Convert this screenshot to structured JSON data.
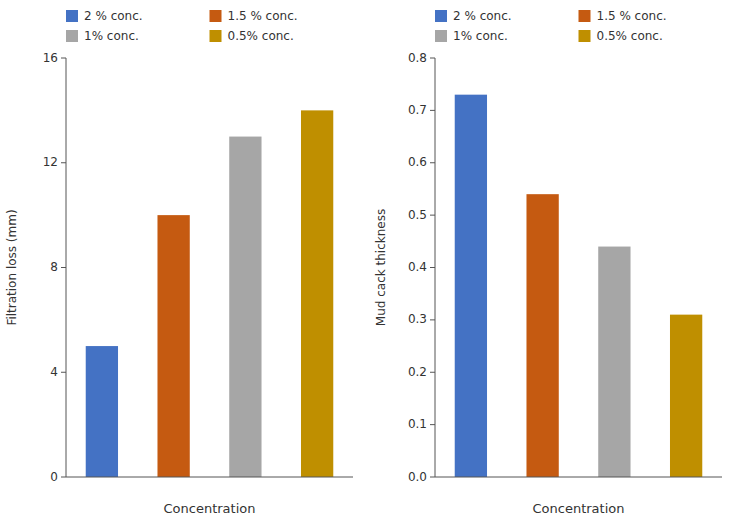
{
  "chart_data": [
    {
      "type": "bar",
      "xlabel": "Concentration",
      "ylabel": "Filtration loss (mm)",
      "categories": [
        null,
        null,
        null,
        null
      ],
      "series": [
        {
          "name": "2 % conc.",
          "color": "#4472C4",
          "values": [
            5.0,
            null,
            null,
            null
          ]
        },
        {
          "name": "1.5 % conc.",
          "color": "#C55A11",
          "values": [
            null,
            10.0,
            null,
            null
          ]
        },
        {
          "name": "1% conc.",
          "color": "#A6A6A6",
          "values": [
            null,
            null,
            13.0,
            null
          ]
        },
        {
          "name": "0.5% conc.",
          "color": "#BF8F00",
          "values": [
            null,
            null,
            null,
            14.0
          ]
        }
      ],
      "ylim": [
        0,
        16
      ],
      "yticks": [
        0,
        4,
        8,
        12,
        16
      ],
      "grid": false,
      "legend": "upper left",
      "tick_labels": "y"
    },
    {
      "type": "bar",
      "xlabel": "Concentration",
      "ylabel": "Mud cack thickness",
      "categories": [
        null,
        null,
        null,
        null
      ],
      "series": [
        {
          "name": "2 % conc.",
          "color": "#4472C4",
          "values": [
            0.73,
            null,
            null,
            null
          ]
        },
        {
          "name": "1.5 % conc.",
          "color": "#C55A11",
          "values": [
            null,
            0.54,
            null,
            null
          ]
        },
        {
          "name": "1% conc.",
          "color": "#A6A6A6",
          "values": [
            null,
            null,
            0.44,
            null
          ]
        },
        {
          "name": "0.5% conc.",
          "color": "#BF8F00",
          "values": [
            null,
            null,
            null,
            0.31
          ]
        }
      ],
      "ylim": [
        0,
        0.8
      ],
      "yticks": [
        {
          "value": 0,
          "label": "0.0"
        },
        0.1,
        0.2,
        0.3,
        0.4,
        0.5,
        0.6,
        0.7,
        0.8
      ],
      "grid": false,
      "legend": "upper left",
      "tick_labels": "y"
    }
  ]
}
